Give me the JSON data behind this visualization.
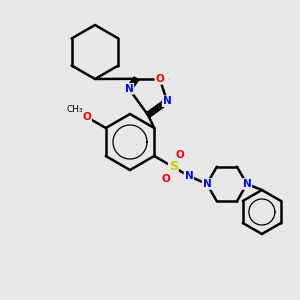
{
  "background_color": "#e8e8e8",
  "line_color": "#000000",
  "bond_width": 1.8,
  "atom_colors": {
    "N": "#0000ff",
    "O": "#ff0000",
    "S": "#cccc00",
    "C": "#000000"
  },
  "figsize": [
    3.0,
    3.0
  ],
  "dpi": 100
}
